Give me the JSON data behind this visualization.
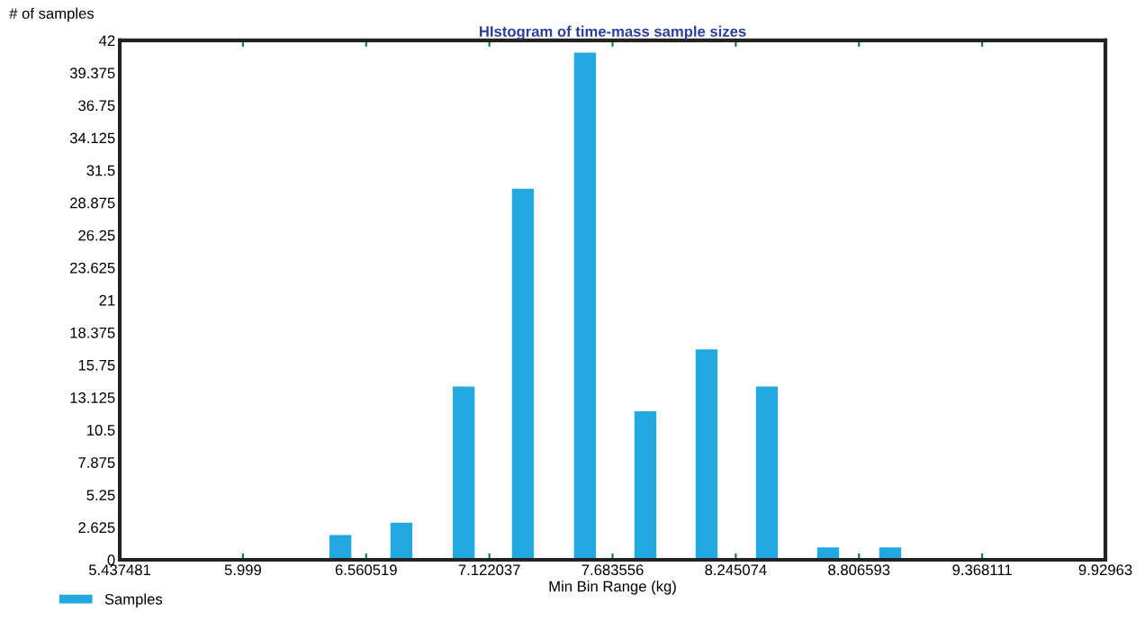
{
  "chart_data": {
    "type": "bar",
    "title": "HIstogram of time-mass sample sizes",
    "xlabel": "Min Bin Range (kg)",
    "ylabel": "# of samples",
    "x": [
      6.443,
      6.721,
      7.005,
      7.275,
      7.558,
      7.833,
      8.112,
      8.387,
      8.666,
      8.949
    ],
    "series": [
      {
        "name": "Samples",
        "color": "#22a9e1",
        "values": [
          2,
          3,
          14,
          30,
          41,
          12,
          17,
          14,
          1,
          1
        ]
      }
    ],
    "xlim": [
      5.437481,
      9.92963
    ],
    "xticks": [
      5.437481,
      5.999,
      6.560519,
      7.122037,
      7.683556,
      8.245074,
      8.806593,
      9.368111,
      9.92963
    ],
    "ylim": [
      0,
      42
    ],
    "yticks": [
      0,
      2.625,
      5.25,
      7.875,
      10.5,
      13.125,
      15.75,
      18.375,
      21,
      23.625,
      26.25,
      28.875,
      31.5,
      34.125,
      36.75,
      39.375,
      42
    ],
    "grid": false,
    "legend": "bottom left"
  }
}
